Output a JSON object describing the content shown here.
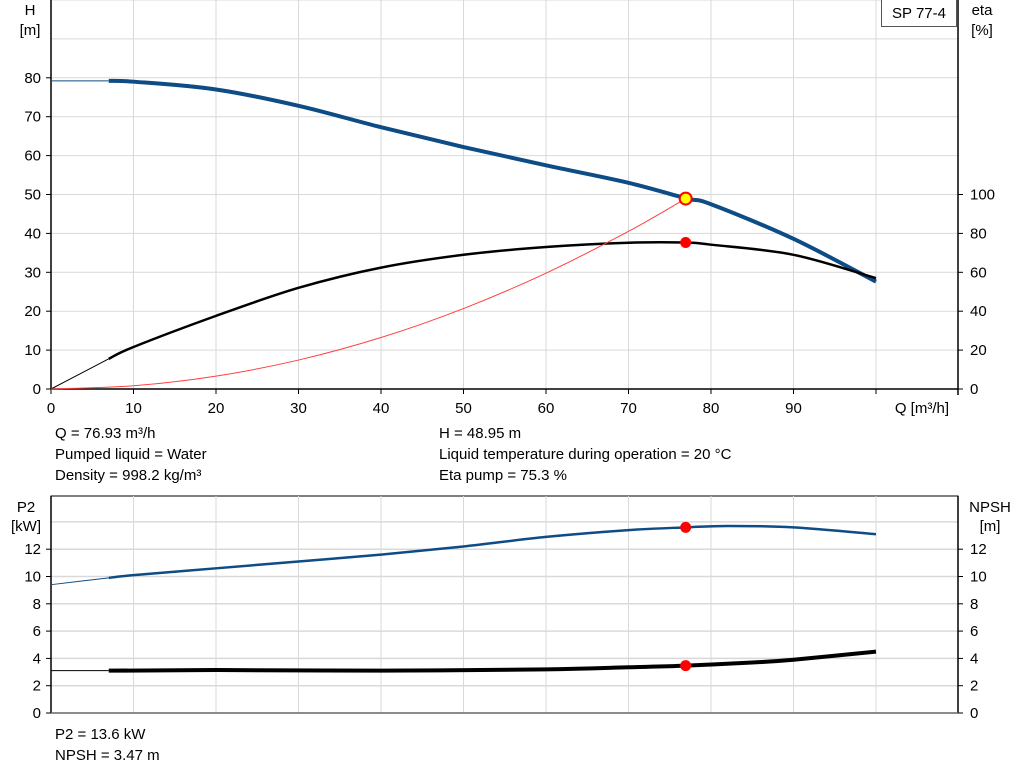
{
  "title": "SP 77-4",
  "info_top": {
    "q": "Q = 76.93 m³/h",
    "liquid": "Pumped liquid = Water",
    "density": "Density = 998.2 kg/m³",
    "h": "H = 48.95 m",
    "temp": "Liquid temperature during operation = 20 °C",
    "eta": "Eta pump = 75.3 %"
  },
  "info_bottom": {
    "p2": "P2 = 13.6 kW",
    "npsh": "NPSH = 3.47 m"
  },
  "colors": {
    "head": "#0e4c85",
    "eta": "#000000",
    "system": "#ff4040",
    "point": "#ff0000",
    "duty_fill": "#ffff00",
    "grid": "#d9d9d9"
  },
  "chart_data": [
    {
      "type": "line",
      "xlabel": "Q [m³/h]",
      "ylabel_left": [
        "H",
        "[m]"
      ],
      "ylabel_right": [
        "eta",
        "[%]"
      ],
      "xlim": [
        0,
        110
      ],
      "ylim_left": [
        0,
        100
      ],
      "ylim_right": [
        0,
        200
      ],
      "xticks": [
        0,
        10,
        20,
        30,
        40,
        50,
        60,
        70,
        80,
        90
      ],
      "yticks_left": [
        0,
        10,
        20,
        30,
        40,
        50,
        60,
        70,
        80
      ],
      "yticks_right": [
        0,
        20,
        40,
        60,
        80,
        100
      ],
      "grid": true,
      "series": [
        {
          "key": "H",
          "axis": "left",
          "x": [
            0,
            7,
            10,
            20,
            30,
            40,
            50,
            60,
            70,
            77,
            80,
            90,
            100
          ],
          "y": [
            79.2,
            79.2,
            79,
            77,
            72.8,
            67.3,
            62.2,
            57.5,
            53,
            49,
            47.5,
            38.6,
            27.6
          ]
        },
        {
          "key": "eta",
          "axis": "right",
          "x": [
            0,
            7,
            10,
            20,
            30,
            40,
            50,
            60,
            70,
            77,
            80,
            90,
            100
          ],
          "y": [
            0,
            15.5,
            21.6,
            37.6,
            52,
            62.4,
            69,
            73,
            75.2,
            75.3,
            74.2,
            69,
            57
          ]
        },
        {
          "key": "system",
          "axis": "left",
          "x": [
            0,
            10,
            20,
            30,
            40,
            50,
            60,
            70,
            76.93
          ],
          "y": [
            0,
            0.83,
            3.31,
            7.44,
            13.23,
            20.68,
            29.78,
            40.53,
            48.95
          ]
        }
      ],
      "points": [
        {
          "key": "duty",
          "axis": "left",
          "x": 76.93,
          "y": 48.95
        },
        {
          "key": "eta-point",
          "axis": "right",
          "x": 76.93,
          "y": 75.3
        }
      ]
    },
    {
      "type": "line",
      "ylabel_left": [
        "P2",
        "[kW]"
      ],
      "ylabel_right": [
        "NPSH",
        "[m]"
      ],
      "xlim": [
        0,
        110
      ],
      "ylim": [
        0,
        14
      ],
      "yticks": [
        0,
        2,
        4,
        6,
        8,
        10,
        12
      ],
      "grid": true,
      "series": [
        {
          "key": "P2",
          "x": [
            0,
            7,
            10,
            20,
            30,
            40,
            50,
            60,
            70,
            77,
            82,
            90,
            100
          ],
          "y": [
            9.4,
            9.9,
            10.1,
            10.6,
            11.1,
            11.6,
            12.2,
            12.9,
            13.4,
            13.6,
            13.7,
            13.6,
            13.1
          ]
        },
        {
          "key": "NPSH",
          "x": [
            0,
            7,
            20,
            40,
            60,
            70,
            77,
            85,
            90,
            100
          ],
          "y": [
            3.1,
            3.1,
            3.15,
            3.1,
            3.2,
            3.35,
            3.47,
            3.7,
            3.9,
            4.5
          ]
        }
      ],
      "points": [
        {
          "key": "p2-point",
          "x": 76.93,
          "y": 13.6
        },
        {
          "key": "npsh-point",
          "x": 76.93,
          "y": 3.47
        }
      ]
    }
  ]
}
